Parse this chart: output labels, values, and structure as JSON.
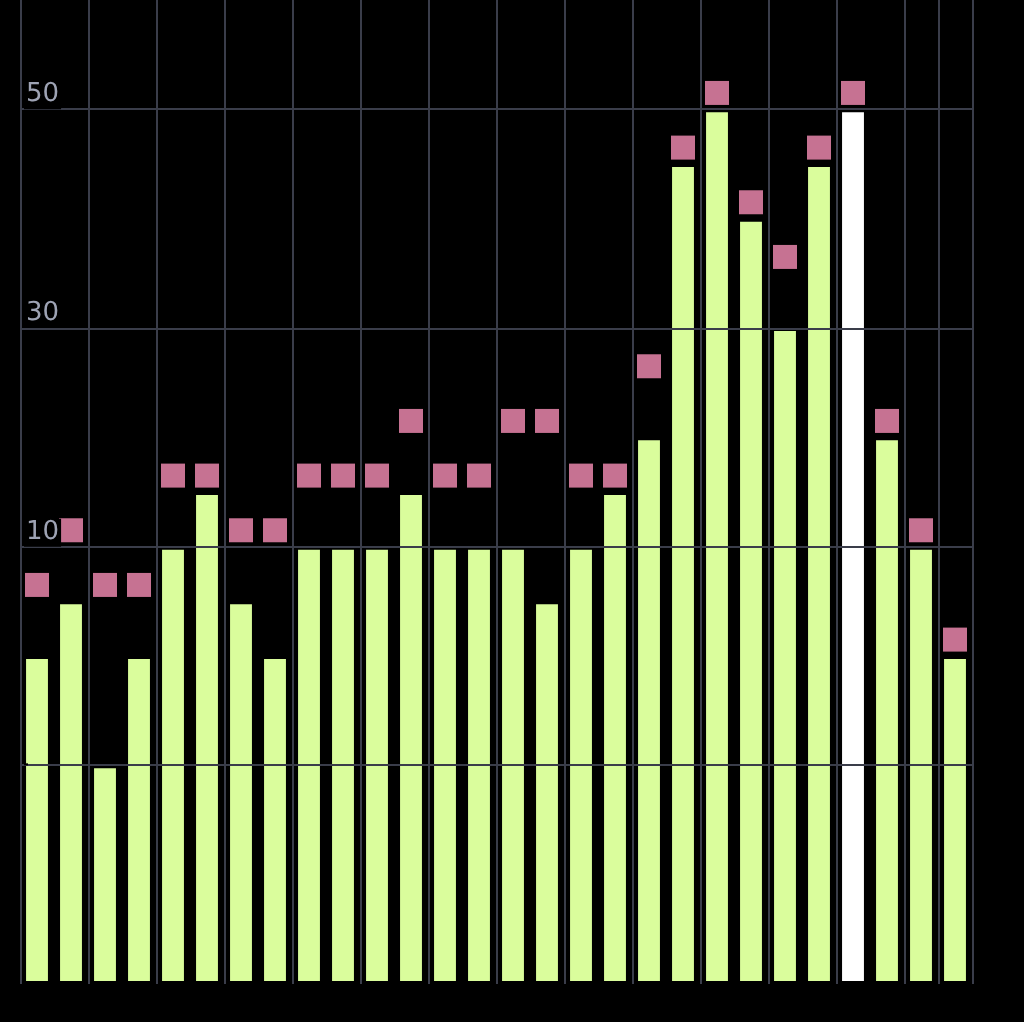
{
  "chart_data": {
    "type": "bar",
    "categories": [
      null,
      null,
      null,
      null,
      null,
      null,
      null,
      null,
      null,
      null,
      null,
      null,
      null,
      null,
      null,
      null,
      null,
      null,
      null,
      null,
      null,
      null,
      null,
      null,
      null,
      null,
      null,
      null
    ],
    "marker": "square",
    "series": [
      {
        "base": [
          -30,
          -30,
          -30,
          -30,
          -30,
          -30,
          -30,
          -30,
          -30,
          -30,
          -30,
          -30,
          -30,
          -30,
          -30,
          -30,
          -30,
          -30,
          -30,
          -30,
          -30,
          -30,
          -30,
          -30,
          -30,
          -30,
          -30,
          -30
        ],
        "values": [
          30,
          35,
          20,
          30,
          40,
          45,
          35,
          30,
          40,
          40,
          40,
          45,
          40,
          40,
          40,
          35,
          40,
          45,
          50,
          75,
          80,
          70,
          60,
          75,
          80,
          50,
          40,
          30
        ],
        "colors": [
          "#dafd9c",
          "#dafd9c",
          "#dafd9c",
          "#dafd9c",
          "#dafd9c",
          "#dafd9c",
          "#dafd9c",
          "#dafd9c",
          "#dafd9c",
          "#dafd9c",
          "#dafd9c",
          "#dafd9c",
          "#dafd9c",
          "#dafd9c",
          "#dafd9c",
          "#dafd9c",
          "#dafd9c",
          "#dafd9c",
          "#dafd9c",
          "#dafd9c",
          "#dafd9c",
          "#dafd9c",
          "#dafd9c",
          "#dafd9c",
          "#ffffff",
          "#dafd9c",
          "#dafd9c",
          "#dafd9c"
        ]
      },
      {
        "type": "scatter",
        "color": "#f78fb6",
        "values": [
          6.5,
          11.5,
          6.5,
          6.5,
          16.5,
          16.5,
          11.5,
          11.5,
          16.5,
          16.5,
          16.5,
          21.5,
          16.5,
          16.5,
          21.5,
          21.5,
          16.5,
          16.5,
          26.5,
          46.5,
          51.5,
          41.5,
          36.5,
          46.5,
          51.5,
          21.5,
          11.5,
          1.5
        ]
      }
    ],
    "ylim": [
      -30,
      60
    ],
    "yticks": [
      {
        "value": -10,
        "label": null
      },
      10,
      30,
      50
    ],
    "grid": true
  }
}
